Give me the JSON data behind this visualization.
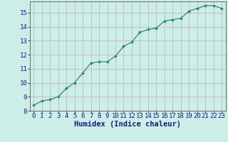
{
  "x": [
    0,
    1,
    2,
    3,
    4,
    5,
    6,
    7,
    8,
    9,
    10,
    11,
    12,
    13,
    14,
    15,
    16,
    17,
    18,
    19,
    20,
    21,
    22,
    23
  ],
  "y": [
    8.4,
    8.7,
    8.8,
    9.0,
    9.6,
    10.0,
    10.7,
    11.4,
    11.5,
    11.5,
    11.9,
    12.6,
    12.9,
    13.6,
    13.8,
    13.9,
    14.4,
    14.5,
    14.6,
    15.1,
    15.3,
    15.5,
    15.5,
    15.3
  ],
  "xlabel": "Humidex (Indice chaleur)",
  "ylim": [
    8,
    15.8
  ],
  "xlim": [
    -0.5,
    23.5
  ],
  "yticks": [
    8,
    9,
    10,
    11,
    12,
    13,
    14,
    15
  ],
  "xticks": [
    0,
    1,
    2,
    3,
    4,
    5,
    6,
    7,
    8,
    9,
    10,
    11,
    12,
    13,
    14,
    15,
    16,
    17,
    18,
    19,
    20,
    21,
    22,
    23
  ],
  "line_color": "#1e7a6e",
  "marker_color": "#1e7a6e",
  "bg_color": "#cceee8",
  "grid_color": "#c8b8b8",
  "xlabel_fontsize": 7.5,
  "tick_fontsize": 6.5,
  "xlabel_color": "#1a1a7a",
  "tick_color": "#1a1a7a"
}
